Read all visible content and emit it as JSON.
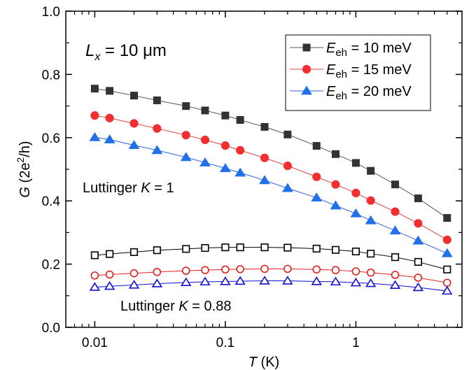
{
  "chart_data": {
    "type": "line",
    "xlabel": {
      "var": "T",
      "unit": " (K)"
    },
    "ylabel": {
      "var": "G",
      "unit_open": " (2e",
      "unit_sup": "2",
      "unit_close": "/h)"
    },
    "xscale": "log",
    "xlim": [
      0.006,
      6.5
    ],
    "ylim": [
      0,
      1.0
    ],
    "xticks": [
      {
        "value": 0.01,
        "label": "0.01"
      },
      {
        "value": 0.1,
        "label": "0.1"
      },
      {
        "value": 1,
        "label": "1"
      }
    ],
    "yticks": [
      {
        "value": 0.0,
        "label": "0.0"
      },
      {
        "value": 0.2,
        "label": "0.2"
      },
      {
        "value": 0.4,
        "label": "0.4"
      },
      {
        "value": 0.6,
        "label": "0.6"
      },
      {
        "value": 0.8,
        "label": "0.8"
      },
      {
        "value": 1.0,
        "label": "1.0"
      }
    ],
    "legend_position": "top-right",
    "grid": false,
    "x": [
      0.01,
      0.013,
      0.02,
      0.03,
      0.05,
      0.07,
      0.1,
      0.13,
      0.2,
      0.3,
      0.5,
      0.7,
      1.0,
      1.3,
      2.0,
      3.0,
      5.0
    ],
    "series": [
      {
        "legend_var": "E",
        "legend_sub": "eh",
        "legend_value": " = 10 meV",
        "marker": "square",
        "filled": true,
        "color": "#555555",
        "markerColor": "#333333",
        "values": [
          0.755,
          0.748,
          0.733,
          0.718,
          0.7,
          0.686,
          0.67,
          0.656,
          0.634,
          0.61,
          0.574,
          0.548,
          0.52,
          0.495,
          0.452,
          0.408,
          0.346
        ]
      },
      {
        "legend_var": "E",
        "legend_sub": "eh",
        "legend_value": " = 15 meV",
        "marker": "circle",
        "filled": true,
        "color": "#e04040",
        "markerColor": "#f03030",
        "values": [
          0.67,
          0.662,
          0.645,
          0.629,
          0.608,
          0.593,
          0.575,
          0.56,
          0.536,
          0.511,
          0.476,
          0.452,
          0.425,
          0.401,
          0.366,
          0.329,
          0.277
        ]
      },
      {
        "legend_var": "E",
        "legend_sub": "eh",
        "legend_value": " = 20 meV",
        "marker": "triangle",
        "filled": true,
        "color": "#3060e0",
        "markerColor": "#2070e8",
        "values": [
          0.601,
          0.594,
          0.576,
          0.56,
          0.538,
          0.521,
          0.503,
          0.489,
          0.465,
          0.44,
          0.41,
          0.385,
          0.36,
          0.338,
          0.306,
          0.274,
          0.234
        ]
      },
      {
        "marker": "square",
        "filled": false,
        "color": "#000000",
        "markerColor": "#000000",
        "values": [
          0.228,
          0.232,
          0.238,
          0.244,
          0.248,
          0.251,
          0.253,
          0.253,
          0.253,
          0.252,
          0.249,
          0.245,
          0.24,
          0.233,
          0.222,
          0.207,
          0.183
        ]
      },
      {
        "marker": "circle",
        "filled": false,
        "color": "#e02020",
        "markerColor": "#e02020",
        "values": [
          0.164,
          0.167,
          0.171,
          0.175,
          0.179,
          0.181,
          0.183,
          0.184,
          0.185,
          0.185,
          0.183,
          0.181,
          0.177,
          0.173,
          0.166,
          0.157,
          0.141
        ]
      },
      {
        "marker": "triangle",
        "filled": false,
        "color": "#1010d0",
        "markerColor": "#1010d0",
        "values": [
          0.127,
          0.13,
          0.134,
          0.138,
          0.142,
          0.144,
          0.145,
          0.146,
          0.147,
          0.147,
          0.145,
          0.144,
          0.141,
          0.139,
          0.133,
          0.126,
          0.115
        ]
      }
    ],
    "annotations": {
      "length": {
        "var": "L",
        "sub": "x",
        "rest": " = 10 μm"
      },
      "luttinger1": {
        "prefix": "Luttinger ",
        "var": "K",
        "rest": " = 1"
      },
      "luttinger2": {
        "prefix": "Luttinger ",
        "var": "K",
        "rest": " = 0.88"
      }
    }
  }
}
